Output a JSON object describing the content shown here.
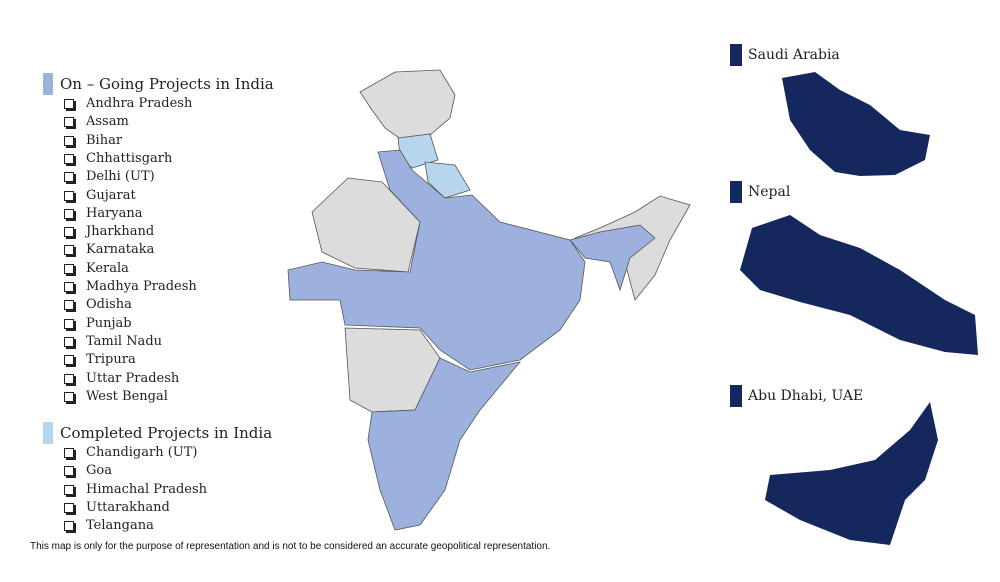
{
  "ongoing": {
    "title": "On – Going Projects in India",
    "items": [
      "Andhra Pradesh",
      "Assam",
      "Bihar",
      "Chhattisgarh",
      "Delhi (UT)",
      "Gujarat",
      "Haryana",
      "Jharkhand",
      "Karnataka",
      "Kerala",
      "Madhya Pradesh",
      "Odisha",
      "Punjab",
      "Tamil Nadu",
      "Tripura",
      "Uttar Pradesh",
      "West Bengal"
    ]
  },
  "completed": {
    "title": "Completed Projects in India",
    "items": [
      "Chandigarh (UT)",
      "Goa",
      "Himachal Pradesh",
      "Uttarakhand",
      "Telangana"
    ]
  },
  "international": [
    "Saudi Arabia",
    "Nepal",
    "Abu Dhabi, UAE"
  ],
  "disclaimer": "This map is only for the purpose of representation and is not to be considered an accurate geopolitical representation."
}
